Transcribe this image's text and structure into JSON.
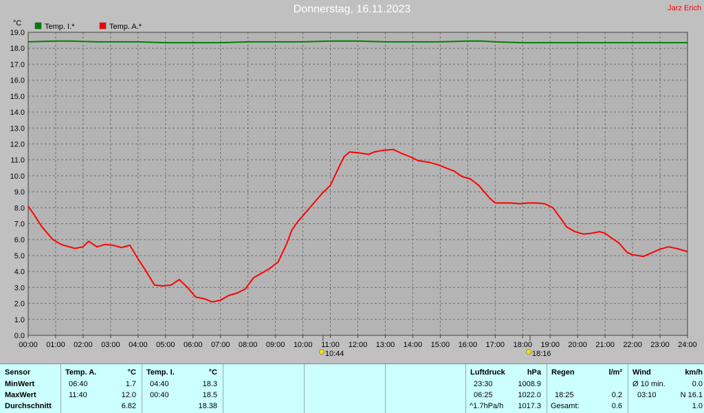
{
  "header": {
    "title": "Donnerstag, 16.11.2023",
    "author": "Jarz Erich"
  },
  "chart_data": {
    "type": "line",
    "ylabel": "°C",
    "ylim": [
      0,
      19
    ],
    "yticks": [
      "0.0",
      "1.0",
      "2.0",
      "3.0",
      "4.0",
      "5.0",
      "6.0",
      "7.0",
      "8.0",
      "9.0",
      "10.0",
      "11.0",
      "12.0",
      "13.0",
      "14.0",
      "15.0",
      "16.0",
      "17.0",
      "18.0",
      "19.0"
    ],
    "xlim": [
      0,
      24
    ],
    "xticks": [
      "00:00",
      "01:00",
      "02:00",
      "03:00",
      "04:00",
      "05:00",
      "06:00",
      "07:00",
      "08:00",
      "09:00",
      "10:00",
      "11:00",
      "12:00",
      "13:00",
      "14:00",
      "15:00",
      "16:00",
      "17:00",
      "18:00",
      "19:00",
      "20:00",
      "21:00",
      "22:00",
      "23:00",
      "24:00"
    ],
    "grid": true,
    "legend_position": "top-left",
    "markers": [
      {
        "hour": 10.733,
        "label": "10:44",
        "icon": "sunrise-icon"
      },
      {
        "hour": 18.267,
        "label": "18:16",
        "icon": "sunset-icon"
      }
    ],
    "series": [
      {
        "name": "Temp. I.*",
        "color": "#008000",
        "x": [
          0,
          1,
          1.5,
          2.5,
          4,
          5,
          6,
          7,
          8,
          9,
          10,
          11,
          12,
          13,
          14,
          15,
          16,
          16.5,
          17,
          18,
          19,
          20,
          21,
          22,
          23,
          24
        ],
        "y": [
          18.4,
          18.45,
          18.45,
          18.4,
          18.4,
          18.35,
          18.35,
          18.35,
          18.4,
          18.4,
          18.4,
          18.45,
          18.45,
          18.4,
          18.4,
          18.4,
          18.45,
          18.45,
          18.4,
          18.35,
          18.35,
          18.35,
          18.35,
          18.35,
          18.35,
          18.35
        ]
      },
      {
        "name": "Temp. A.*",
        "color": "#ff0000",
        "x": [
          0,
          0.2,
          0.5,
          0.9,
          1.2,
          1.5,
          1.7,
          2.0,
          2.2,
          2.5,
          2.8,
          3.1,
          3.4,
          3.6,
          3.7,
          4.0,
          4.3,
          4.6,
          4.9,
          5.2,
          5.5,
          5.8,
          6.1,
          6.4,
          6.7,
          7.0,
          7.3,
          7.6,
          7.9,
          8.2,
          8.5,
          8.8,
          9.1,
          9.4,
          9.6,
          9.8,
          10.1,
          10.4,
          10.7,
          11.0,
          11.3,
          11.5,
          11.7,
          12.0,
          12.4,
          12.6,
          12.9,
          13.3,
          13.6,
          13.9,
          14.2,
          14.6,
          14.9,
          15.2,
          15.5,
          15.8,
          16.1,
          16.4,
          16.8,
          17.0,
          17.3,
          17.6,
          17.9,
          18.2,
          18.5,
          18.8,
          19.1,
          19.4,
          19.6,
          19.9,
          20.2,
          20.5,
          20.8,
          21.0,
          21.2,
          21.5,
          21.8,
          22.0,
          22.4,
          22.6,
          22.8,
          23.0,
          23.3,
          23.6,
          23.9,
          24.0
        ],
        "y": [
          8.1,
          7.6,
          6.8,
          6.0,
          5.7,
          5.55,
          5.45,
          5.55,
          5.9,
          5.55,
          5.7,
          5.65,
          5.5,
          5.6,
          5.65,
          4.8,
          4.0,
          3.15,
          3.1,
          3.15,
          3.5,
          3.0,
          2.4,
          2.3,
          2.1,
          2.2,
          2.5,
          2.65,
          2.9,
          3.6,
          3.9,
          4.2,
          4.6,
          5.7,
          6.6,
          7.1,
          7.7,
          8.3,
          8.9,
          9.4,
          10.5,
          11.2,
          11.5,
          11.45,
          11.35,
          11.5,
          11.6,
          11.65,
          11.4,
          11.2,
          10.95,
          10.85,
          10.7,
          10.5,
          10.3,
          9.95,
          9.8,
          9.4,
          8.6,
          8.3,
          8.3,
          8.3,
          8.25,
          8.3,
          8.3,
          8.25,
          8.0,
          7.3,
          6.8,
          6.5,
          6.35,
          6.4,
          6.5,
          6.4,
          6.15,
          5.8,
          5.2,
          5.05,
          4.95,
          5.1,
          5.25,
          5.4,
          5.55,
          5.45,
          5.3,
          5.25
        ]
      }
    ]
  },
  "stats": {
    "sensor": {
      "header": "Sensor",
      "rows": [
        "MinWert",
        "MaxWert",
        "Durchschnitt"
      ]
    },
    "temp_a": {
      "header": "Temp. A.",
      "unit": "°C",
      "min_time": "06:40",
      "min": "1.7",
      "max_time": "11:40",
      "max": "12.0",
      "avg": "6.82"
    },
    "temp_i": {
      "header": "Temp. I.",
      "unit": "°C",
      "min_time": "04:40",
      "min": "18.3",
      "max_time": "00:40",
      "max": "18.5",
      "avg": "18.38"
    },
    "luftdruck": {
      "header": "Luftdruck",
      "unit": "hPa",
      "min_time": "23:30",
      "min": "1008.9",
      "max_time": "06:25",
      "max": "1022.0",
      "trend": "^1.7hPa/h",
      "avg": "1017.3"
    },
    "regen": {
      "header": "Regen",
      "unit": "l/m²",
      "max_time": "18:25",
      "max": "0.2",
      "total_label": "Gesamt:",
      "total": "0.6"
    },
    "wind": {
      "header": "Wind",
      "unit": "km/h",
      "avg_label": "Ø 10 min.",
      "avg": "0.0",
      "max_time": "03:10",
      "max": "N 16.1",
      "total": "1.0"
    }
  }
}
